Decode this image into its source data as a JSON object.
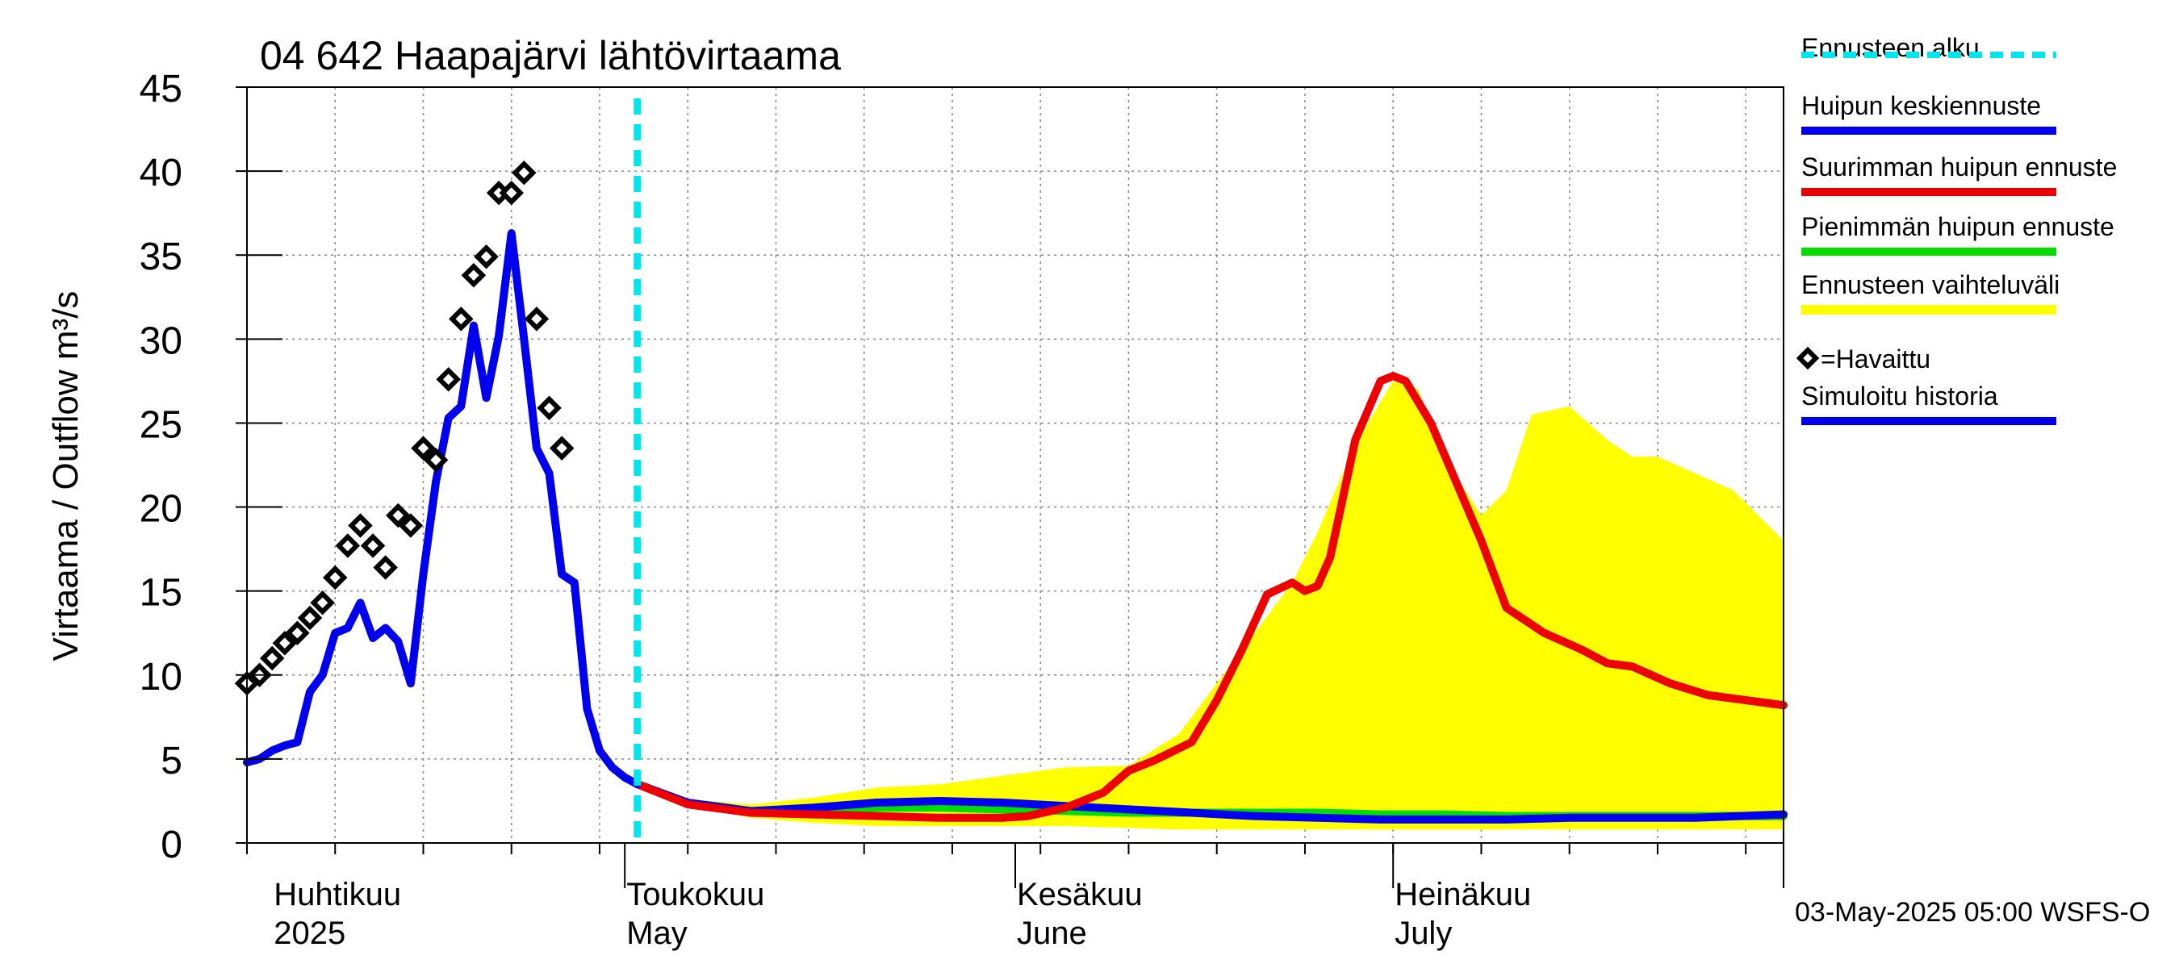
{
  "chart_data": {
    "type": "line",
    "title": "04 642 Haapajärvi lähtövirtaama",
    "ylabel": "Virtaama / Outflow    m³/s",
    "ylim": [
      0,
      45
    ],
    "y_ticks": [
      "0",
      "5",
      "10",
      "15",
      "20",
      "25",
      "30",
      "35",
      "40",
      "45"
    ],
    "x_range_days": [
      0,
      122
    ],
    "month_labels": [
      {
        "day": 2,
        "fi": "Huhtikuu",
        "en": "2025"
      },
      {
        "day": 30,
        "fi": "Toukokuu",
        "en": "May"
      },
      {
        "day": 61,
        "fi": "Kesäkuu",
        "en": "June"
      },
      {
        "day": 91,
        "fi": "Heinäkuu",
        "en": "July"
      }
    ],
    "forecast_start_day": 31,
    "footer": "03-May-2025 05:00 WSFS-O",
    "legend": [
      {
        "label": "Ennusteen alku",
        "color": "#00e5ee",
        "style": "dashed"
      },
      {
        "label": "Huipun keskiennuste",
        "color": "#0000ee",
        "style": "solid"
      },
      {
        "label": "Suurimman huipun ennuste",
        "color": "#ee0000",
        "style": "solid"
      },
      {
        "label": "Pienimmän huipun ennuste",
        "color": "#00dd00",
        "style": "solid"
      },
      {
        "label": "Ennusteen vaihteluväli",
        "color": "#ffff00",
        "style": "band"
      },
      {
        "label": "=Havaittu",
        "color": "#000000",
        "style": "marker"
      },
      {
        "label": "Simuloitu historia",
        "color": "#0000ee",
        "style": "solid"
      }
    ],
    "series": [
      {
        "name": "Simuloitu historia",
        "color": "#0000ee",
        "x": [
          0,
          1,
          2,
          3,
          4,
          5,
          6,
          7,
          8,
          9,
          10,
          11,
          12,
          13,
          14,
          15,
          16,
          17,
          18,
          19,
          20,
          21,
          22,
          23,
          24,
          25,
          26,
          27,
          28,
          29,
          30,
          31
        ],
        "y": [
          4.8,
          5.0,
          5.5,
          5.8,
          6.0,
          9.0,
          10.0,
          12.5,
          12.8,
          14.3,
          12.2,
          12.8,
          12.0,
          9.5,
          16.0,
          21.5,
          25.3,
          26.0,
          30.8,
          26.5,
          30.2,
          36.3,
          30.0,
          23.5,
          22.0,
          16.0,
          15.5,
          8.0,
          5.5,
          4.5,
          3.9,
          3.5
        ]
      },
      {
        "name": "Huipun keskiennuste",
        "color": "#0000ee",
        "x": [
          31,
          35,
          40,
          45,
          50,
          55,
          60,
          65,
          70,
          75,
          80,
          85,
          90,
          95,
          100,
          105,
          110,
          115,
          122
        ],
        "y": [
          3.5,
          2.4,
          1.9,
          2.1,
          2.4,
          2.5,
          2.4,
          2.2,
          2.0,
          1.8,
          1.6,
          1.5,
          1.4,
          1.4,
          1.4,
          1.5,
          1.5,
          1.5,
          1.7
        ]
      },
      {
        "name": "Suurimman huipun ennuste",
        "color": "#ee0000",
        "x": [
          31,
          35,
          40,
          45,
          50,
          55,
          60,
          62,
          65,
          68,
          70,
          72,
          75,
          77,
          79,
          81,
          83,
          84,
          85,
          86,
          88,
          90,
          91,
          92,
          94,
          96,
          98,
          100,
          103,
          106,
          108,
          110,
          113,
          116,
          119,
          122
        ],
        "y": [
          3.5,
          2.3,
          1.8,
          1.7,
          1.6,
          1.5,
          1.5,
          1.6,
          2.1,
          3.0,
          4.3,
          4.9,
          6.0,
          8.5,
          11.5,
          14.8,
          15.5,
          15.0,
          15.3,
          17.0,
          24.0,
          27.5,
          27.8,
          27.5,
          25.0,
          21.5,
          18.0,
          14.0,
          12.5,
          11.5,
          10.7,
          10.5,
          9.5,
          8.8,
          8.5,
          8.2
        ]
      },
      {
        "name": "Pienimmän huipun ennuste",
        "color": "#00dd00",
        "x": [
          31,
          35,
          40,
          45,
          50,
          55,
          60,
          65,
          70,
          75,
          80,
          85,
          90,
          95,
          100,
          105,
          110,
          115,
          122
        ],
        "y": [
          3.5,
          2.4,
          1.9,
          2.0,
          2.1,
          2.1,
          2.0,
          1.9,
          1.8,
          1.8,
          1.8,
          1.8,
          1.7,
          1.7,
          1.6,
          1.6,
          1.6,
          1.6,
          1.6
        ]
      }
    ],
    "band": {
      "name": "Ennusteen vaihteluväli",
      "color": "#ffff00",
      "x": [
        31,
        35,
        40,
        45,
        50,
        55,
        60,
        65,
        70,
        74,
        77,
        80,
        83,
        85,
        87,
        89,
        91,
        93,
        95,
        98,
        100,
        102,
        105,
        108,
        110,
        112,
        115,
        118,
        122
      ],
      "upper": [
        3.6,
        2.6,
        2.3,
        2.7,
        3.3,
        3.5,
        4.0,
        4.5,
        4.6,
        6.5,
        9.5,
        12.5,
        15.5,
        18.5,
        22.0,
        25.0,
        27.5,
        27.0,
        23.0,
        19.5,
        21.0,
        25.5,
        26.0,
        24.0,
        23.0,
        23.0,
        22.0,
        21.0,
        18.0
      ],
      "lower": [
        3.4,
        2.2,
        1.5,
        1.2,
        1.0,
        1.0,
        1.0,
        1.0,
        0.9,
        0.8,
        0.8,
        0.8,
        0.8,
        0.8,
        0.8,
        0.8,
        0.8,
        0.8,
        0.8,
        0.8,
        0.8,
        0.8,
        0.8,
        0.8,
        0.8,
        0.8,
        0.8,
        0.8,
        0.8
      ]
    },
    "observed": {
      "name": "Havaittu",
      "x": [
        0,
        1,
        2,
        3,
        4,
        5,
        6,
        7,
        8,
        9,
        10,
        11,
        12,
        13,
        14,
        15,
        16,
        17,
        18,
        19,
        20,
        21,
        22,
        23,
        24,
        25
      ],
      "y": [
        9.5,
        10.0,
        11.0,
        11.9,
        12.5,
        13.4,
        14.3,
        15.8,
        17.7,
        18.9,
        17.7,
        16.4,
        19.5,
        18.9,
        23.5,
        22.8,
        27.6,
        31.2,
        33.8,
        34.9,
        38.7,
        38.7,
        39.9,
        31.2,
        25.9,
        23.5
      ]
    }
  }
}
